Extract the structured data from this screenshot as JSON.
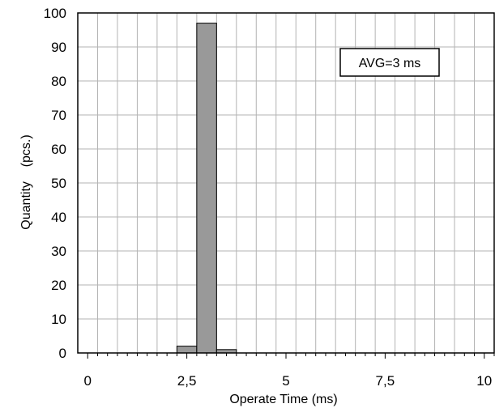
{
  "chart_data": {
    "type": "bar",
    "xlabel": "Operate Time (ms)",
    "ylabel": "Quantity    (pcs.)",
    "xlim": [
      -0.25,
      10.25
    ],
    "ylim": [
      0,
      100
    ],
    "x_ticks": [
      0,
      2.5,
      5,
      7.5,
      10
    ],
    "x_tick_labels": [
      "0",
      "2,5",
      "5",
      "7,5",
      "10"
    ],
    "y_ticks": [
      0,
      10,
      20,
      30,
      40,
      50,
      60,
      70,
      80,
      90,
      100
    ],
    "y_tick_labels": [
      "0",
      "10",
      "20",
      "30",
      "40",
      "50",
      "60",
      "70",
      "80",
      "90",
      "100"
    ],
    "x_grid_step": 0.5,
    "minor_tick_step": 0.25,
    "grid": true,
    "bin_width": 0.5,
    "bins": [
      {
        "x_start": 2.25,
        "x_end": 2.75,
        "value": 2
      },
      {
        "x_start": 2.75,
        "x_end": 3.25,
        "value": 97
      },
      {
        "x_start": 3.25,
        "x_end": 3.75,
        "value": 1
      }
    ],
    "bar_color": "#999999",
    "annotation": "AVG=3 ms"
  }
}
